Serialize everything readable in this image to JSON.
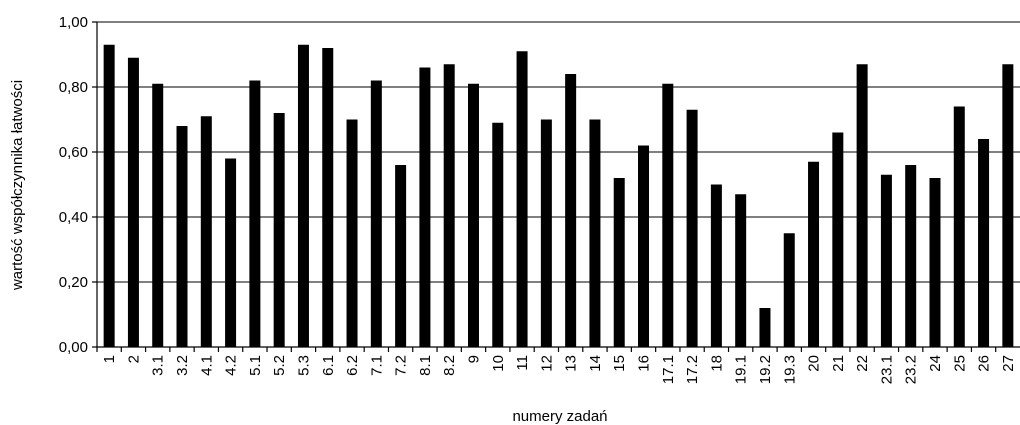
{
  "chart_data": {
    "type": "bar",
    "xlabel": "numery zadań",
    "ylabel": "wartość współczynnika łatwości",
    "ylim": [
      0,
      1
    ],
    "yticks": [
      "0,00",
      "0,20",
      "0,40",
      "0,60",
      "0,80",
      "1,00"
    ],
    "grid": true,
    "bar_color": "#000000",
    "categories": [
      "1",
      "2",
      "3.1",
      "3.2",
      "4.1",
      "4.2",
      "5.1",
      "5.2",
      "5.3",
      "6.1",
      "6.2",
      "7.1",
      "7.2",
      "8.1",
      "8.2",
      "9",
      "10",
      "11",
      "12",
      "13",
      "14",
      "15",
      "16",
      "17.1",
      "17.2",
      "18",
      "19.1",
      "19.2",
      "19.3",
      "20",
      "21",
      "22",
      "23.1",
      "23.2",
      "24",
      "25",
      "26",
      "27"
    ],
    "values": [
      0.93,
      0.89,
      0.81,
      0.68,
      0.71,
      0.58,
      0.82,
      0.72,
      0.93,
      0.92,
      0.7,
      0.82,
      0.56,
      0.86,
      0.87,
      0.81,
      0.69,
      0.91,
      0.7,
      0.84,
      0.7,
      0.52,
      0.62,
      0.81,
      0.73,
      0.5,
      0.47,
      0.12,
      0.35,
      0.57,
      0.66,
      0.87,
      0.53,
      0.56,
      0.52,
      0.74,
      0.64,
      0.87
    ]
  }
}
